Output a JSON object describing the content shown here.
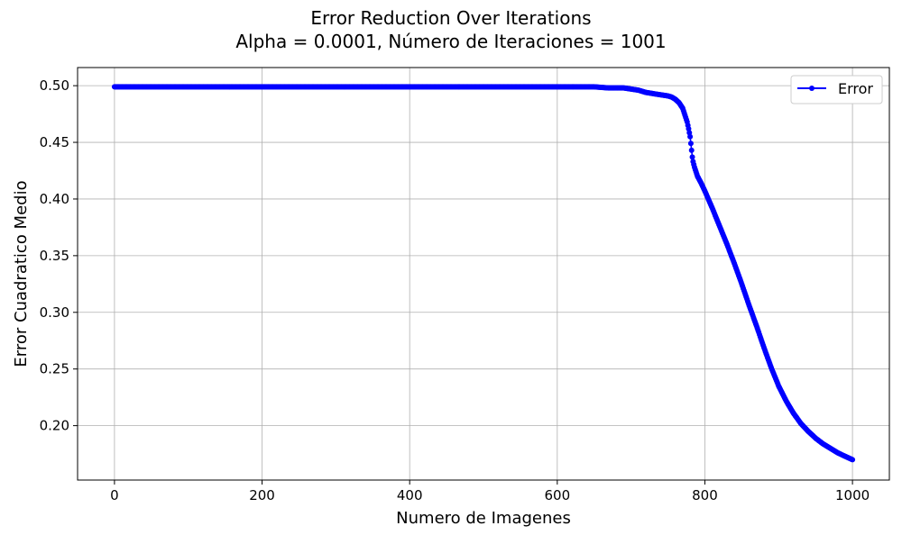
{
  "chart_data": {
    "type": "line",
    "title": "Error Reduction Over Iterations",
    "subtitle": "Alpha = 0.0001, Número de Iteraciones = 1001",
    "xlabel": "Numero de Imagenes",
    "ylabel": "Error Cuadratico Medio",
    "xlim": [
      -50,
      1050
    ],
    "ylim": [
      0.152,
      0.516
    ],
    "xticks": [
      0,
      200,
      400,
      600,
      800,
      1000
    ],
    "yticks": [
      0.2,
      0.25,
      0.3,
      0.35,
      0.4,
      0.45,
      0.5
    ],
    "grid": true,
    "legend_position": "top-right",
    "series": [
      {
        "name": "Error",
        "color": "#0000ff",
        "marker": "circle",
        "points_x": [
          0,
          100,
          200,
          300,
          400,
          500,
          600,
          650,
          670,
          690,
          700,
          710,
          720,
          730,
          740,
          750,
          755,
          760,
          765,
          770,
          773,
          776,
          778,
          780,
          781,
          782,
          783,
          784,
          786,
          788,
          790,
          795,
          800,
          810,
          820,
          830,
          840,
          850,
          860,
          870,
          880,
          890,
          900,
          910,
          920,
          930,
          940,
          950,
          960,
          970,
          980,
          990,
          1000
        ],
        "points_y": [
          0.499,
          0.499,
          0.499,
          0.499,
          0.499,
          0.499,
          0.499,
          0.499,
          0.498,
          0.498,
          0.497,
          0.496,
          0.494,
          0.493,
          0.492,
          0.491,
          0.49,
          0.488,
          0.485,
          0.48,
          0.474,
          0.468,
          0.462,
          0.455,
          0.449,
          0.443,
          0.437,
          0.433,
          0.428,
          0.424,
          0.42,
          0.414,
          0.407,
          0.392,
          0.376,
          0.36,
          0.343,
          0.325,
          0.306,
          0.288,
          0.269,
          0.251,
          0.235,
          0.222,
          0.211,
          0.202,
          0.195,
          0.189,
          0.184,
          0.18,
          0.176,
          0.173,
          0.17
        ]
      }
    ]
  }
}
